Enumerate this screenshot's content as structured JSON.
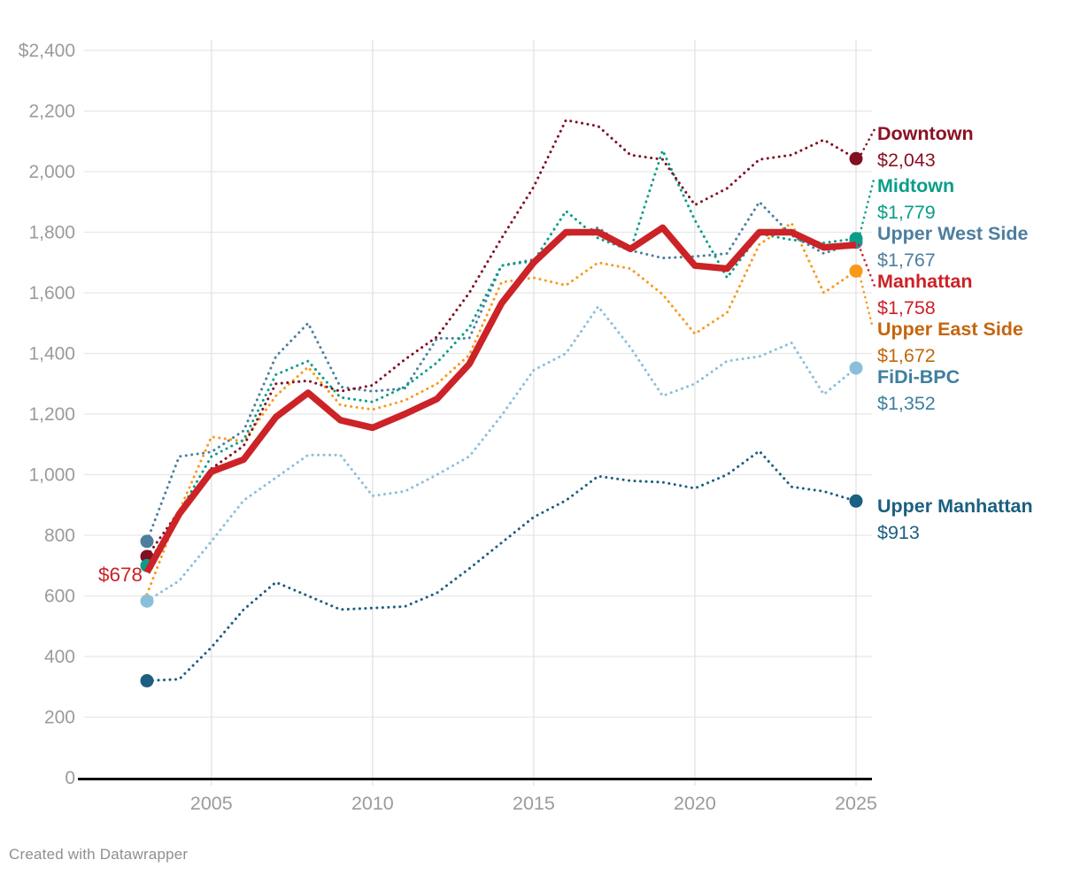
{
  "footer": {
    "credit": "Created with Datawrapper"
  },
  "annotations": {
    "start_value_label": "$678"
  },
  "axis": {
    "y_tick_labels": [
      "$2,400",
      "2,200",
      "2,000",
      "1,800",
      "1,600",
      "1,400",
      "1,200",
      "1,000",
      "800",
      "600",
      "400",
      "200",
      "0"
    ],
    "y_tick_values": [
      2400,
      2200,
      2000,
      1800,
      1600,
      1400,
      1200,
      1000,
      800,
      600,
      400,
      200,
      0
    ],
    "x_tick_labels": [
      "2005",
      "2010",
      "2015",
      "2020",
      "2025"
    ],
    "x_tick_values": [
      2005,
      2010,
      2015,
      2020,
      2025
    ]
  },
  "chart_data": {
    "type": "line",
    "title": "",
    "xlabel": "",
    "ylabel": "",
    "xlim": [
      2002.6,
      2025.5
    ],
    "ylim": [
      0,
      2400
    ],
    "grid": true,
    "legend_position": "right",
    "x": [
      2003,
      2004,
      2005,
      2006,
      2007,
      2008,
      2009,
      2010,
      2011,
      2012,
      2013,
      2014,
      2015,
      2016,
      2017,
      2018,
      2019,
      2020,
      2021,
      2022,
      2023,
      2024,
      2025
    ],
    "series": [
      {
        "name": "Downtown",
        "end_label": "$2,043",
        "end_value": 2043,
        "style": "dotted",
        "color": "#801022",
        "label_color": "#8b1123",
        "start_dot": true,
        "end_dot": true,
        "values": [
          730,
          880,
          1020,
          1095,
          1300,
          1310,
          1275,
          1295,
          1380,
          1455,
          1600,
          1780,
          1950,
          2170,
          2150,
          2055,
          2040,
          1890,
          1945,
          2040,
          2055,
          2105,
          2043
        ]
      },
      {
        "name": "Midtown",
        "end_label": "$1,779",
        "end_value": 1779,
        "style": "dotted",
        "color": "#0b9d89",
        "label_color": "#0b9d89",
        "start_dot": true,
        "end_dot": true,
        "values": [
          700,
          875,
          1060,
          1115,
          1330,
          1375,
          1255,
          1240,
          1290,
          1370,
          1485,
          1690,
          1705,
          1870,
          1780,
          1740,
          2070,
          1840,
          1650,
          1795,
          1775,
          1765,
          1779
        ]
      },
      {
        "name": "Upper West Side",
        "end_label": "$1,767",
        "end_value": 1767,
        "style": "dotted",
        "color": "#4d7e9e",
        "label_color": "#4d7e9e",
        "start_dot": true,
        "end_dot": true,
        "values": [
          780,
          1060,
          1075,
          1145,
          1390,
          1500,
          1290,
          1275,
          1285,
          1450,
          1450,
          1690,
          1710,
          1790,
          1815,
          1740,
          1715,
          1720,
          1730,
          1900,
          1790,
          1730,
          1767
        ]
      },
      {
        "name": "Manhattan",
        "end_label": "$1,758",
        "end_value": 1758,
        "style": "solid",
        "color": "#cb2327",
        "label_color": "#cc2127",
        "start_dot": false,
        "end_dot": false,
        "values": [
          678,
          870,
          1010,
          1050,
          1190,
          1270,
          1180,
          1155,
          1200,
          1250,
          1365,
          1565,
          1700,
          1800,
          1800,
          1745,
          1815,
          1690,
          1680,
          1800,
          1800,
          1750,
          1758
        ]
      },
      {
        "name": "Upper East Side",
        "end_label": "$1,672",
        "end_value": 1672,
        "style": "dotted",
        "color": "#f79a1b",
        "label_color": "#c4660d",
        "start_dot": false,
        "end_dot": true,
        "values": [
          605,
          880,
          1125,
          1110,
          1260,
          1355,
          1230,
          1215,
          1245,
          1300,
          1395,
          1635,
          1650,
          1625,
          1700,
          1680,
          1595,
          1465,
          1535,
          1760,
          1830,
          1600,
          1672
        ]
      },
      {
        "name": "FiDi-BPC",
        "end_label": "$1,352",
        "end_value": 1352,
        "style": "dotted",
        "color": "#8abfda",
        "label_color": "#3e7f9f",
        "start_dot": true,
        "end_dot": true,
        "values": [
          583,
          650,
          780,
          915,
          990,
          1065,
          1065,
          930,
          945,
          1000,
          1060,
          1195,
          1345,
          1400,
          1555,
          1420,
          1260,
          1300,
          1375,
          1390,
          1435,
          1265,
          1352
        ]
      },
      {
        "name": "Upper Manhattan",
        "end_label": "$913",
        "end_value": 913,
        "style": "dotted",
        "color": "#1c5f80",
        "label_color": "#1c5f80",
        "start_dot": true,
        "end_dot": true,
        "values": [
          320,
          325,
          430,
          555,
          645,
          600,
          555,
          560,
          565,
          610,
          690,
          775,
          860,
          915,
          995,
          980,
          975,
          955,
          1000,
          1078,
          960,
          945,
          913
        ]
      }
    ]
  }
}
